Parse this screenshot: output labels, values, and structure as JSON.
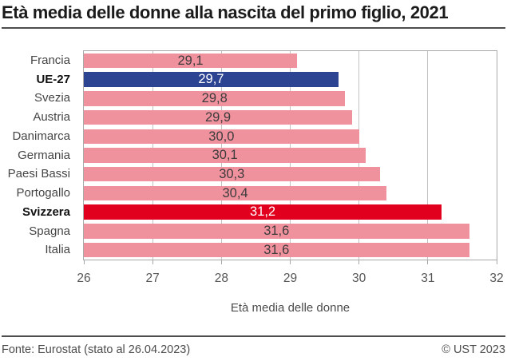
{
  "title": "Età media delle donne alla nascita del primo figlio, 2021",
  "chart_data": {
    "type": "bar",
    "orientation": "horizontal",
    "title": "Età media delle donne alla nascita del primo figlio, 2021",
    "xlabel": "Età media delle donne",
    "ylabel": "",
    "xlim": [
      26,
      32
    ],
    "xticks": [
      "26",
      "27",
      "28",
      "29",
      "30",
      "31",
      "32"
    ],
    "grid": true,
    "legend": "none",
    "rows": [
      {
        "label": "Francia",
        "value": 29.1,
        "display": "29,1",
        "style": "default"
      },
      {
        "label": "UE-27",
        "value": 29.7,
        "display": "29,7",
        "style": "eu"
      },
      {
        "label": "Svezia",
        "value": 29.8,
        "display": "29,8",
        "style": "default"
      },
      {
        "label": "Austria",
        "value": 29.9,
        "display": "29,9",
        "style": "default"
      },
      {
        "label": "Danimarca",
        "value": 30.0,
        "display": "30,0",
        "style": "default"
      },
      {
        "label": "Germania",
        "value": 30.1,
        "display": "30,1",
        "style": "default"
      },
      {
        "label": "Paesi Bassi",
        "value": 30.3,
        "display": "30,3",
        "style": "default"
      },
      {
        "label": "Portogallo",
        "value": 30.4,
        "display": "30,4",
        "style": "default"
      },
      {
        "label": "Svizzera",
        "value": 31.2,
        "display": "31,2",
        "style": "ch"
      },
      {
        "label": "Spagna",
        "value": 31.6,
        "display": "31,6",
        "style": "default"
      },
      {
        "label": "Italia",
        "value": 31.6,
        "display": "31,6",
        "style": "default"
      }
    ]
  },
  "colors": {
    "bar_default": "#f0919e",
    "bar_eu": "#2c4492",
    "bar_ch": "#e1011e",
    "value_on_light": "#3c3c3c",
    "value_on_dark": "#ffffff",
    "grid": "#c2c2c2",
    "frame": "#a9a9a9",
    "rule": "#4d4d4d"
  },
  "footer": {
    "source": "Fonte: Eurostat (stato al 26.04.2023)",
    "copyright": "© UST 2023"
  }
}
